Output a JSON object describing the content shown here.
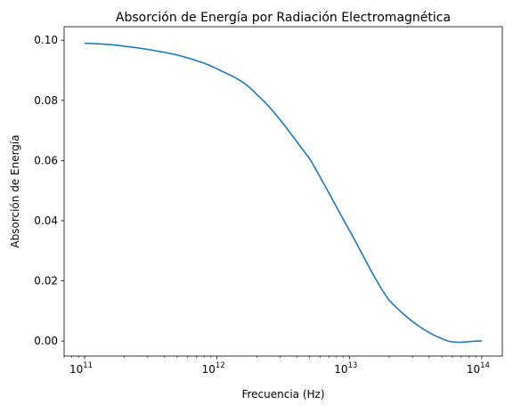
{
  "chart_data": {
    "type": "line",
    "title": "Absorción de Energía por Radiación Electromagnética",
    "xlabel": "Frecuencia (Hz)",
    "ylabel": "Absorción de Energía",
    "x_scale": "log",
    "xlim": [
      70000000000.0,
      143000000000000.0
    ],
    "ylim": [
      -0.005,
      0.1045
    ],
    "x_ticks": [
      {
        "value": 100000000000.0,
        "base": "10",
        "exp": "11"
      },
      {
        "value": 1000000000000.0,
        "base": "10",
        "exp": "12"
      },
      {
        "value": 10000000000000.0,
        "base": "10",
        "exp": "13"
      },
      {
        "value": 100000000000000.0,
        "base": "10",
        "exp": "14"
      }
    ],
    "y_ticks": [
      {
        "value": 0.0,
        "label": "0.00"
      },
      {
        "value": 0.02,
        "label": "0.02"
      },
      {
        "value": 0.04,
        "label": "0.04"
      },
      {
        "value": 0.06,
        "label": "0.06"
      },
      {
        "value": 0.08,
        "label": "0.08"
      },
      {
        "value": 0.1,
        "label": "0.10"
      }
    ],
    "grid": false,
    "series": [
      {
        "color": "#1f77b4",
        "x": [
          100000000000.0,
          200000000000.0,
          500000000000.0,
          1000000000000.0,
          2000000000000.0,
          5000000000000.0,
          10000000000000.0,
          20000000000000.0,
          50000000000000.0,
          100000000000000.0
        ],
        "y": [
          0.099,
          0.098,
          0.0951,
          0.0905,
          0.0819,
          0.0607,
          0.0368,
          0.0135,
          0.0008,
          0.0
        ]
      }
    ]
  }
}
